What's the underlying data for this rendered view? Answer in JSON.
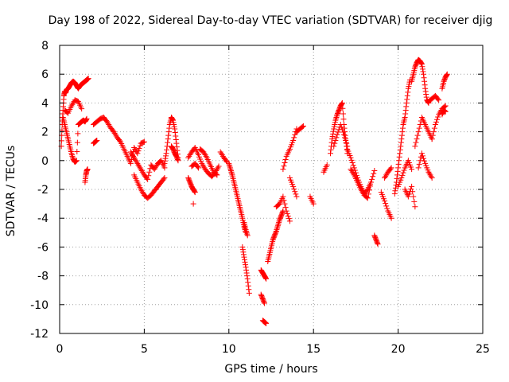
{
  "chart_data": {
    "type": "scatter",
    "title": "Day 198 of 2022, Sidereal Day-to-day VTEC variation (SDTVAR) for receiver djig",
    "xlabel": "GPS time / hours",
    "ylabel": "SDTVAR / TECUs",
    "xlim": [
      0,
      25
    ],
    "ylim": [
      -12,
      8
    ],
    "xticks": [
      "0",
      "5",
      "10",
      "15",
      "20",
      "25"
    ],
    "yticks": [
      "-12",
      "-10",
      "-8",
      "-6",
      "-4",
      "-2",
      "0",
      "2",
      "4",
      "6",
      "8"
    ],
    "grid": true,
    "marker": "+",
    "color": "#ff0000",
    "series": [
      {
        "x": [
          0.1,
          0.15,
          0.2,
          0.25,
          0.3,
          0.35,
          0.4,
          0.5,
          0.6,
          0.7,
          0.8,
          0.9,
          1.0,
          1.1,
          1.2,
          1.3,
          1.4,
          1.5,
          1.6,
          1.7
        ],
        "y": [
          1.0,
          2.5,
          3.5,
          4.5,
          4.8,
          4.7,
          4.9,
          5.0,
          5.2,
          5.4,
          5.5,
          5.4,
          5.2,
          5.0,
          5.2,
          5.3,
          5.4,
          5.5,
          5.6,
          5.7
        ]
      },
      {
        "x": [
          0.2,
          0.3,
          0.4,
          0.5,
          0.6,
          0.7,
          0.8,
          0.9,
          1.0,
          1.1,
          1.2,
          1.3,
          1.4,
          1.5,
          1.6
        ],
        "y": [
          3.0,
          2.5,
          2.0,
          1.5,
          1.0,
          0.5,
          0.1,
          -0.1,
          0.0,
          2.5,
          2.6,
          2.7,
          2.8,
          2.7,
          2.9
        ]
      },
      {
        "x": [
          0.3,
          0.5,
          0.7,
          0.9,
          1.1,
          1.3
        ],
        "y": [
          3.5,
          3.3,
          3.8,
          4.2,
          4.1,
          3.6
        ]
      },
      {
        "x": [
          1.5,
          1.55,
          1.6,
          1.65
        ],
        "y": [
          -1.5,
          -1.0,
          -0.7,
          -0.6
        ]
      },
      {
        "x": [
          2.0,
          2.2,
          2.4,
          2.6,
          2.8,
          3.0,
          3.2,
          3.4,
          3.6,
          3.8,
          4.0,
          4.2,
          4.4,
          4.6,
          4.8,
          5.0
        ],
        "y": [
          2.5,
          2.7,
          2.9,
          3.0,
          2.7,
          2.3,
          2.0,
          1.6,
          1.3,
          0.8,
          0.3,
          -0.2,
          0.9,
          0.5,
          1.2,
          1.3
        ]
      },
      {
        "x": [
          2.0,
          2.1,
          2.2
        ],
        "y": [
          1.2,
          1.3,
          1.4
        ]
      },
      {
        "x": [
          4.4,
          4.6,
          4.8,
          5.0,
          5.2,
          5.4,
          5.6,
          5.8,
          6.0,
          6.2
        ],
        "y": [
          -1.0,
          -1.5,
          -2.0,
          -2.4,
          -2.6,
          -2.4,
          -2.1,
          -1.8,
          -1.5,
          -1.2
        ]
      },
      {
        "x": [
          4.2,
          4.4,
          4.6,
          4.8,
          5.0,
          5.2,
          5.4,
          5.6,
          5.8,
          6.0,
          6.2
        ],
        "y": [
          0.6,
          0.2,
          -0.2,
          -0.6,
          -1.0,
          -1.3,
          -0.3,
          -0.6,
          -0.2,
          0.0,
          -0.5
        ]
      },
      {
        "x": [
          6.2,
          6.3,
          6.4,
          6.5,
          6.6,
          6.7,
          6.8,
          6.9,
          7.0
        ],
        "y": [
          -0.2,
          0.5,
          1.5,
          2.5,
          3.0,
          2.8,
          2.2,
          1.2,
          0.2
        ]
      },
      {
        "x": [
          6.6,
          6.7,
          6.8,
          6.9,
          7.0
        ],
        "y": [
          1.0,
          0.8,
          0.5,
          0.3,
          0.0
        ]
      },
      {
        "x": [
          7.6,
          7.7,
          7.8,
          7.9,
          8.0
        ],
        "y": [
          -1.2,
          -1.5,
          -1.8,
          -2.0,
          -2.2
        ]
      },
      {
        "x": [
          7.6,
          7.8,
          8.0,
          8.2,
          8.4,
          8.6,
          8.8,
          9.0,
          9.2,
          9.4
        ],
        "y": [
          0.2,
          0.6,
          0.9,
          0.4,
          -0.2,
          -0.6,
          -0.9,
          -1.1,
          -0.8,
          -0.4
        ]
      },
      {
        "x": [
          7.8,
          8.0,
          8.2
        ],
        "y": [
          -0.4,
          -0.2,
          -0.5
        ]
      },
      {
        "x": [
          7.9
        ],
        "y": [
          -3.0
        ]
      },
      {
        "x": [
          8.3,
          8.5,
          8.7,
          8.9,
          9.1,
          9.3
        ],
        "y": [
          0.8,
          0.6,
          0.2,
          -0.3,
          -0.8,
          -1.0
        ]
      },
      {
        "x": [
          9.5,
          9.7,
          9.9
        ],
        "y": [
          0.6,
          0.2,
          -0.1
        ]
      },
      {
        "x": [
          10.0,
          10.1,
          10.2,
          10.3,
          10.4,
          10.5,
          10.6,
          10.7,
          10.8,
          10.9,
          11.0
        ],
        "y": [
          -0.2,
          -0.6,
          -1.0,
          -1.5,
          -2.0,
          -2.5,
          -3.0,
          -3.5,
          -4.0,
          -4.6,
          -5.0
        ]
      },
      {
        "x": [
          10.8,
          10.9,
          11.0,
          11.1,
          11.2
        ],
        "y": [
          -6.0,
          -6.7,
          -7.4,
          -8.2,
          -9.2
        ]
      },
      {
        "x": [
          10.9,
          11.0,
          11.1
        ],
        "y": [
          -4.3,
          -4.8,
          -5.2
        ]
      },
      {
        "x": [
          11.9,
          12.0,
          12.1,
          12.2
        ],
        "y": [
          -7.6,
          -7.8,
          -8.0,
          -8.2
        ]
      },
      {
        "x": [
          11.9,
          12.0,
          12.1
        ],
        "y": [
          -9.3,
          -9.6,
          -9.9
        ]
      },
      {
        "x": [
          12.0,
          12.1,
          12.2
        ],
        "y": [
          -11.1,
          -11.2,
          -11.3
        ]
      },
      {
        "x": [
          12.3,
          12.4,
          12.5,
          12.6,
          12.7,
          12.8,
          12.9,
          13.0,
          13.1,
          13.2
        ],
        "y": [
          -7.0,
          -6.5,
          -6.0,
          -5.5,
          -5.2,
          -4.9,
          -4.5,
          -4.1,
          -3.8,
          -3.5
        ]
      },
      {
        "x": [
          12.8,
          13.0,
          13.2,
          13.4,
          13.6
        ],
        "y": [
          -3.2,
          -3.0,
          -2.5,
          -3.5,
          -4.2
        ]
      },
      {
        "x": [
          13.2,
          13.4,
          13.6,
          13.8,
          14.0
        ],
        "y": [
          -0.6,
          0.3,
          0.8,
          1.4,
          2.2
        ]
      },
      {
        "x": [
          13.6,
          13.8,
          14.0
        ],
        "y": [
          -1.2,
          -1.8,
          -2.5
        ]
      },
      {
        "x": [
          14.0,
          14.2,
          14.4
        ],
        "y": [
          2.0,
          2.2,
          2.4
        ]
      },
      {
        "x": [
          14.8,
          15.0
        ],
        "y": [
          -2.5,
          -3.0
        ]
      },
      {
        "x": [
          15.6,
          15.8
        ],
        "y": [
          -0.8,
          -0.3
        ]
      },
      {
        "x": [
          16.0,
          16.1,
          16.2,
          16.3,
          16.4,
          16.5,
          16.6,
          16.7,
          16.8,
          16.9,
          17.0
        ],
        "y": [
          0.5,
          1.5,
          2.2,
          2.8,
          3.2,
          3.5,
          3.8,
          4.0,
          2.5,
          1.5,
          0.5
        ]
      },
      {
        "x": [
          16.2,
          16.4,
          16.6,
          16.8,
          17.0
        ],
        "y": [
          1.0,
          1.8,
          2.5,
          1.8,
          1.0
        ]
      },
      {
        "x": [
          17.0,
          17.2,
          17.4,
          17.6,
          17.8,
          18.0,
          18.2,
          18.4
        ],
        "y": [
          0.8,
          0.2,
          -0.5,
          -1.2,
          -1.8,
          -2.3,
          -2.0,
          -1.5
        ]
      },
      {
        "x": [
          17.2,
          17.4,
          17.6,
          17.8,
          18.0,
          18.2,
          18.4,
          18.6
        ],
        "y": [
          -0.6,
          -1.0,
          -1.5,
          -2.0,
          -2.4,
          -2.6,
          -1.5,
          -0.7
        ]
      },
      {
        "x": [
          18.6,
          18.7,
          18.8
        ],
        "y": [
          -5.2,
          -5.5,
          -5.8
        ]
      },
      {
        "x": [
          19.0,
          19.2,
          19.4,
          19.6
        ],
        "y": [
          -2.2,
          -2.8,
          -3.5,
          -4.0
        ]
      },
      {
        "x": [
          19.2,
          19.4,
          19.6
        ],
        "y": [
          -1.2,
          -0.8,
          -0.5
        ]
      },
      {
        "x": [
          19.8,
          19.9,
          20.0,
          20.1,
          20.2,
          20.3,
          20.4,
          20.5,
          20.6,
          20.7
        ],
        "y": [
          -2.3,
          -1.5,
          -0.5,
          0.5,
          1.5,
          2.5,
          3.0,
          4.0,
          5.0,
          5.6
        ]
      },
      {
        "x": [
          20.0,
          20.2,
          20.4,
          20.6,
          20.8
        ],
        "y": [
          -1.8,
          -1.2,
          -0.5,
          0.0,
          -0.6
        ]
      },
      {
        "x": [
          20.4,
          20.6,
          20.8,
          21.0
        ],
        "y": [
          -2.0,
          -2.5,
          -1.8,
          -3.2
        ]
      },
      {
        "x": [
          20.8,
          20.9,
          21.0,
          21.1,
          21.2,
          21.3,
          21.4,
          21.5,
          21.6,
          21.7,
          21.8
        ],
        "y": [
          5.5,
          6.0,
          6.5,
          6.8,
          7.0,
          6.9,
          6.7,
          6.0,
          5.0,
          4.2,
          4.0
        ]
      },
      {
        "x": [
          21.0,
          21.2,
          21.4,
          21.6,
          21.8,
          22.0
        ],
        "y": [
          1.0,
          2.0,
          3.0,
          2.5,
          2.0,
          1.5
        ]
      },
      {
        "x": [
          21.2,
          21.4,
          21.6,
          21.8,
          22.0
        ],
        "y": [
          -0.5,
          0.5,
          -0.2,
          -0.8,
          -1.2
        ]
      },
      {
        "x": [
          21.8,
          22.0,
          22.2,
          22.4
        ],
        "y": [
          4.1,
          4.3,
          4.5,
          4.2
        ]
      },
      {
        "x": [
          22.0,
          22.2,
          22.4,
          22.6,
          22.8
        ],
        "y": [
          1.5,
          2.5,
          3.2,
          3.6,
          3.8
        ]
      },
      {
        "x": [
          22.6,
          22.7,
          22.8,
          22.9
        ],
        "y": [
          5.0,
          5.5,
          5.8,
          6.0
        ]
      },
      {
        "x": [
          22.6,
          22.7,
          22.8
        ],
        "y": [
          3.2,
          3.5,
          3.4
        ]
      }
    ]
  }
}
